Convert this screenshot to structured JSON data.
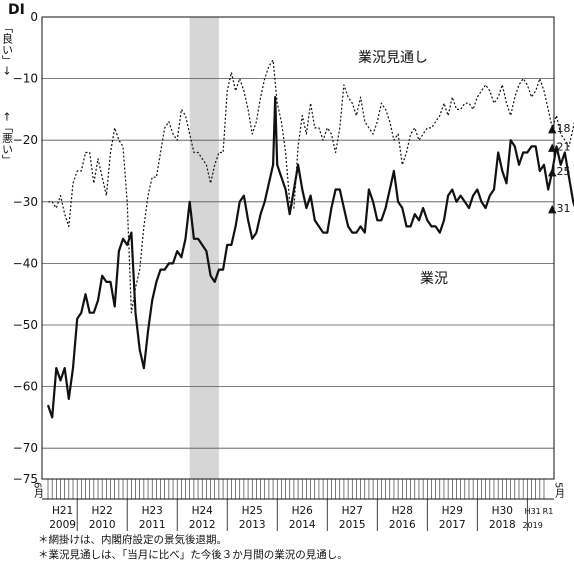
{
  "chart_data": {
    "type": "line",
    "ylabel": "DI",
    "y_axis_side_labels": {
      "up": "「良い」→",
      "down": "←「悪い」"
    },
    "ylim": [
      -75,
      0
    ],
    "yticks": [
      0,
      -10,
      -20,
      -30,
      -40,
      -50,
      -60,
      -70,
      -75
    ],
    "grid": true,
    "x_start": "2009-06",
    "x_end": "2019-05",
    "x_edge_labels": {
      "start": "6月",
      "end": "5月"
    },
    "year_labels": [
      {
        "era": "H21",
        "year": "2009"
      },
      {
        "era": "H22",
        "year": "2010"
      },
      {
        "era": "H23",
        "year": "2011"
      },
      {
        "era": "H24",
        "year": "2012"
      },
      {
        "era": "H25",
        "year": "2013"
      },
      {
        "era": "H26",
        "year": "2014"
      },
      {
        "era": "H27",
        "year": "2015"
      },
      {
        "era": "H28",
        "year": "2016"
      },
      {
        "era": "H29",
        "year": "2017"
      },
      {
        "era": "H30",
        "year": "2018"
      },
      {
        "era": "H31",
        "year": "2019"
      },
      {
        "era": "R1",
        "year": ""
      }
    ],
    "recession_shading": {
      "start": "2012-04",
      "end": "2012-11"
    },
    "series": [
      {
        "name": "業況",
        "style": "solid",
        "values": [
          -63,
          -65,
          -57,
          -59,
          -57,
          -62,
          -57,
          -49,
          -48,
          -45,
          -48,
          -48,
          -46,
          -42,
          -43,
          -43,
          -47,
          -38,
          -36,
          -37,
          -35,
          -48,
          -54,
          -57,
          -51,
          -46,
          -43,
          -41,
          -41,
          -40,
          -40,
          -38,
          -39,
          -36,
          -30,
          -36,
          -36,
          -37,
          -38,
          -42,
          -43,
          -41,
          -41,
          -37,
          -37,
          -34,
          -30,
          -29,
          -33,
          -36,
          -35,
          -32,
          -30,
          -27,
          -24,
          -24,
          -26,
          -28,
          -32,
          -28,
          -24,
          -28,
          -31,
          -29,
          -33,
          -34,
          -35,
          -35,
          -31,
          -28,
          -28,
          -31,
          -34,
          -35,
          -35,
          -34,
          -35,
          -28,
          -30,
          -33,
          -33,
          -31,
          -28,
          -25,
          -30,
          -31,
          -34,
          -34,
          -32,
          -33,
          -31,
          -33,
          -34,
          -34,
          -35,
          -33,
          -29,
          -28,
          -30,
          -29,
          -30,
          -31,
          -29,
          -28,
          -30,
          -31,
          -29,
          -28,
          -22,
          -25,
          -27,
          -20,
          -21,
          -24,
          -22,
          -22,
          -21,
          -21,
          -25,
          -24,
          -28,
          -25,
          -21,
          -24,
          -22,
          -26,
          -30,
          -32,
          -31,
          -37,
          -25,
          -31
        ],
        "spike": {
          "month": "2014-01",
          "value": -13
        }
      },
      {
        "name": "業況見通し",
        "style": "dotted",
        "values": [
          -30,
          -30,
          -31,
          -29,
          -32,
          -34,
          -27,
          -25,
          -25,
          -22,
          -22,
          -27,
          -23,
          -26,
          -29,
          -22,
          -18,
          -20,
          -21,
          -30,
          -48,
          -44,
          -41,
          -34,
          -29,
          -26,
          -26,
          -22,
          -18,
          -17,
          -19,
          -20,
          -15,
          -16,
          -19,
          -22,
          -22,
          -23,
          -24,
          -27,
          -24,
          -22,
          -22,
          -12,
          -9,
          -12,
          -10,
          -12,
          -15,
          -19,
          -17,
          -13,
          -10,
          -8,
          -7,
          -14,
          -17,
          -22,
          -30,
          -31,
          -21,
          -16,
          -19,
          -14,
          -18,
          -18,
          -20,
          -18,
          -19,
          -22,
          -18,
          -11,
          -13,
          -14,
          -16,
          -13,
          -17,
          -18,
          -19,
          -17,
          -14,
          -15,
          -17,
          -20,
          -19,
          -24,
          -22,
          -19,
          -18,
          -20,
          -19,
          -18,
          -18,
          -17,
          -16,
          -14,
          -16,
          -13,
          -15,
          -15,
          -14,
          -14,
          -15,
          -13,
          -12,
          -11,
          -12,
          -14,
          -13,
          -11,
          -14,
          -16,
          -13,
          -11,
          -10,
          -11,
          -13,
          -12,
          -10,
          -12,
          -15,
          -18,
          -16,
          -19,
          -20,
          -21,
          -18,
          -15,
          -16,
          -20
        ]
      }
    ],
    "annotations": [
      {
        "text": "▲18",
        "value": -18,
        "series": "業況見通し"
      },
      {
        "text": "▲21",
        "value": -21,
        "series": "業況見通し"
      },
      {
        "text": "▲25",
        "value": -25,
        "series": "業況"
      },
      {
        "text": "▲31",
        "value": -31,
        "series": "業況"
      }
    ]
  },
  "notes": [
    "＊網掛けは、内閣府設定の景気後退期。",
    "＊業況見通しは、「当月に比べ」た今後３か月間の業況の見通し。"
  ]
}
